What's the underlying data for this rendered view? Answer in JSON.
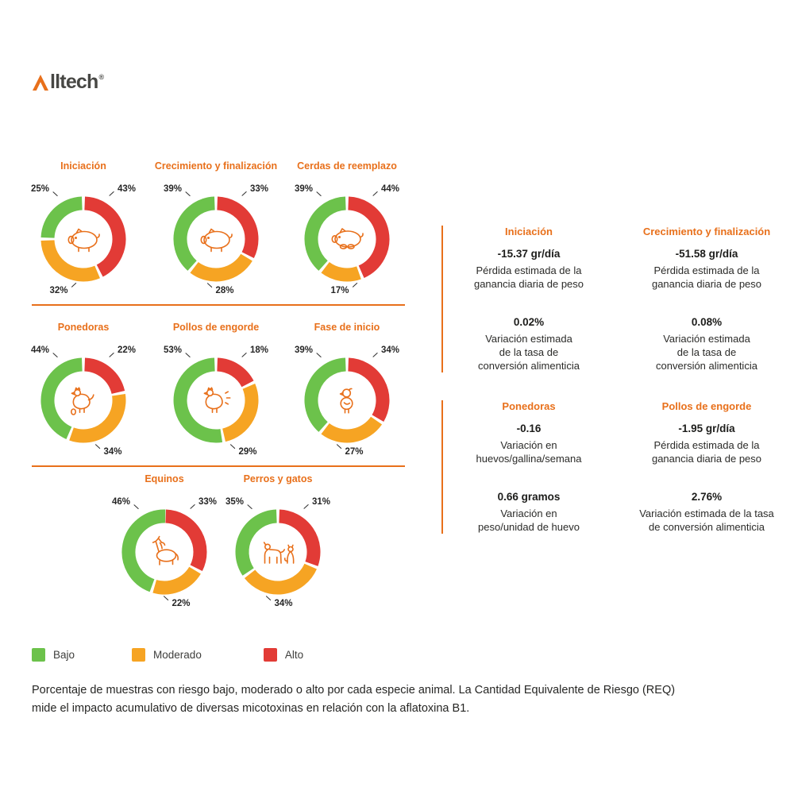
{
  "logo": {
    "brand": "Alltech",
    "mark": "A",
    "rest": "lltech",
    "registered": "®"
  },
  "colors": {
    "accent": "#E8701B",
    "low": "#6CC24B",
    "moderate": "#F6A423",
    "high": "#E23B36",
    "text": "#262626"
  },
  "chart_data": {
    "type": "pie",
    "subtype": "donut",
    "value_unit": "%",
    "legend_position": "bottom-left",
    "risk_levels": [
      {
        "name": "Bajo",
        "color": "#6CC24B"
      },
      {
        "name": "Moderado",
        "color": "#F6A423"
      },
      {
        "name": "Alto",
        "color": "#E23B36"
      }
    ],
    "charts": [
      {
        "title": "Iniciación",
        "icon": "pig",
        "values": {
          "Bajo": 25,
          "Moderado": 32,
          "Alto": 43
        }
      },
      {
        "title": "Crecimiento y finalización",
        "icon": "pig",
        "values": {
          "Bajo": 39,
          "Moderado": 28,
          "Alto": 33
        }
      },
      {
        "title": "Cerdas de reemplazo",
        "icon": "sow",
        "values": {
          "Bajo": 39,
          "Moderado": 17,
          "Alto": 44
        }
      },
      {
        "title": "Ponedoras",
        "icon": "hen",
        "values": {
          "Bajo": 44,
          "Moderado": 34,
          "Alto": 22
        }
      },
      {
        "title": "Pollos de engorde",
        "icon": "chicken",
        "values": {
          "Bajo": 53,
          "Moderado": 29,
          "Alto": 18
        }
      },
      {
        "title": "Fase de inicio",
        "icon": "chick",
        "values": {
          "Bajo": 39,
          "Moderado": 27,
          "Alto": 34
        }
      },
      {
        "title": "Equinos",
        "icon": "horse",
        "values": {
          "Bajo": 46,
          "Moderado": 22,
          "Alto": 33
        }
      },
      {
        "title": "Perros y gatos",
        "icon": "dog-cat",
        "values": {
          "Bajo": 35,
          "Moderado": 34,
          "Alto": 31
        }
      }
    ]
  },
  "details": {
    "groups": [
      {
        "sections": [
          {
            "title": "Iniciación",
            "stats": [
              {
                "value": "-15.37 gr/día",
                "desc": "Pérdida estimada de la\nganancia diaria de peso"
              },
              {
                "value": "0.02%",
                "desc": "Variación estimada\nde la tasa de\nconversión alimenticia"
              }
            ]
          },
          {
            "title": "Crecimiento y finalización",
            "stats": [
              {
                "value": "-51.58 gr/día",
                "desc": "Pérdida estimada de la\nganancia diaria de peso"
              },
              {
                "value": "0.08%",
                "desc": "Variación estimada\nde la tasa de\nconversión alimenticia"
              }
            ]
          }
        ]
      },
      {
        "sections": [
          {
            "title": "Ponedoras",
            "stats": [
              {
                "value": "-0.16",
                "desc": "Variación en\nhuevos/gallina/semana"
              },
              {
                "value": "0.66 gramos",
                "desc": "Variación en\npeso/unidad de huevo"
              }
            ]
          },
          {
            "title": "Pollos de engorde",
            "stats": [
              {
                "value": "-1.95 gr/día",
                "desc": "Pérdida estimada de la\nganancia diaria de peso"
              },
              {
                "value": "2.76%",
                "desc": "Variación estimada de la tasa\nde conversión alimenticia"
              }
            ]
          }
        ]
      }
    ]
  },
  "legend": {
    "items": [
      {
        "label": "Bajo",
        "color": "#6CC24B"
      },
      {
        "label": "Moderado",
        "color": "#F6A423"
      },
      {
        "label": "Alto",
        "color": "#E23B36"
      }
    ]
  },
  "footer": {
    "text": "Porcentaje de muestras con riesgo bajo, moderado o alto por cada especie animal. La Cantidad Equivalente de Riesgo (REQ)\nmide el impacto acumulativo de diversas micotoxinas en relación con la aflatoxina B1."
  }
}
